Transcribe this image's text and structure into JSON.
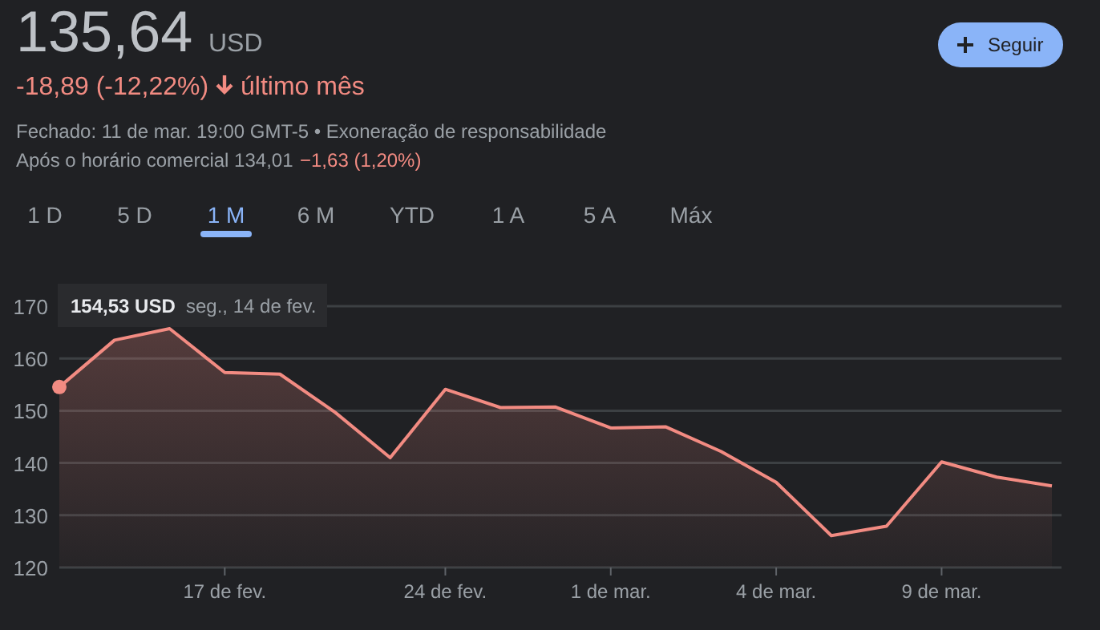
{
  "chart_data": {
    "type": "area",
    "title": "135,64",
    "annotations": [
      "USD",
      "-18,89 (-12,22%)",
      "último mês",
      "Fechado: 11 de mar. 19:00 GMT-5 • Exoneração de responsabilidade",
      "Após o horário comercial 134,01",
      "−1,63 (1,20%)",
      "Seguir",
      "1 D",
      "5 D",
      "1 M",
      "6 M",
      "YTD",
      "1 A",
      "5 A",
      "Máx",
      "154,53 USD",
      "seg., 14 de fev."
    ],
    "categories": [
      null,
      null,
      null,
      "17 de fev.",
      null,
      null,
      null,
      "24 de fev.",
      null,
      null,
      "1 de mar.",
      null,
      null,
      "4 de mar.",
      null,
      null,
      "9 de mar.",
      null,
      null
    ],
    "series": [
      {
        "color": "#f28b82",
        "marker": "none",
        "values": [
          154.53,
          163.5,
          165.7,
          157.3,
          157.0,
          149.7,
          141.0,
          154.1,
          150.6,
          150.7,
          146.7,
          146.9,
          142.2,
          136.3,
          126.1,
          127.9,
          140.2,
          137.3,
          135.6
        ]
      },
      {
        "type": "scatter",
        "color": "#f28b82",
        "marker": "circle",
        "values": [
          154.53,
          null,
          null,
          null,
          null,
          null,
          null,
          null,
          null,
          null,
          null,
          null,
          null,
          null,
          null,
          null,
          null,
          null,
          null
        ]
      }
    ],
    "ylim": [
      120,
      170
    ],
    "yticks": [
      120,
      130,
      140,
      150,
      160,
      170
    ],
    "grid": "y",
    "line_style": "solid"
  }
}
